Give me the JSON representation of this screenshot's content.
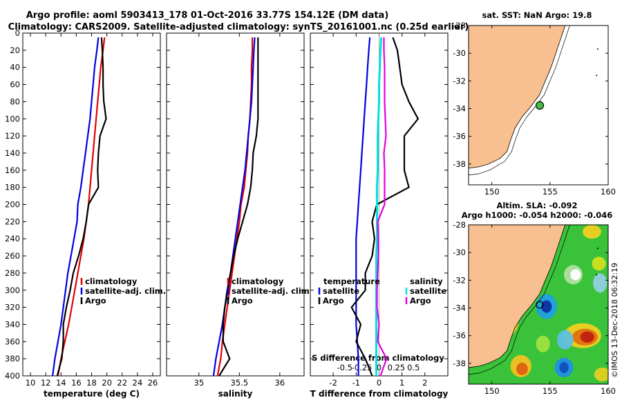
{
  "title_line1": "Argo profile: aoml 5903413_178 01-Oct-2016 33.77S 154.12E (DM data)",
  "title_line2": "Climatology: CARS2009. Satellite-adjusted climatology: synTS_20161001.nc (0.25d earlier)",
  "copyright": "©IMOS 13-Dec-2018 06:32:19",
  "colors": {
    "climatology": "#e00000",
    "satellite": "#0000e0",
    "argo": "#000000",
    "sat_salinity": "#00e0e0",
    "argo_salinity_diff": "#e000e0",
    "land": "#f8c090"
  },
  "chart_data": [
    {
      "type": "line",
      "id": "temperature",
      "xlabel": "temperature (deg C)",
      "xlim": [
        9,
        27
      ],
      "xticks": [
        "10",
        "12",
        "14",
        "16",
        "18",
        "20",
        "22",
        "24",
        "26"
      ],
      "ylim": [
        0,
        400
      ],
      "yticks": [
        "0",
        "20",
        "40",
        "60",
        "80",
        "100",
        "120",
        "140",
        "160",
        "180",
        "200",
        "220",
        "240",
        "260",
        "280",
        "300",
        "320",
        "340",
        "360",
        "380",
        "400"
      ],
      "depth": [
        5,
        20,
        40,
        60,
        80,
        100,
        120,
        140,
        160,
        180,
        200,
        220,
        240,
        260,
        280,
        300,
        320,
        340,
        360,
        380,
        400
      ],
      "series": [
        {
          "name": "climatology",
          "values": [
            19.7,
            19.5,
            19.2,
            19.0,
            18.8,
            18.6,
            18.4,
            18.2,
            18.0,
            17.8,
            17.6,
            17.3,
            17.0,
            16.6,
            16.2,
            15.8,
            15.4,
            15.0,
            14.5,
            14.0,
            13.6
          ]
        },
        {
          "name": "satellite-adj. clim.",
          "values": [
            18.9,
            18.7,
            18.4,
            18.2,
            18.0,
            17.8,
            17.5,
            17.2,
            16.9,
            16.6,
            16.2,
            16.1,
            15.7,
            15.3,
            14.9,
            14.6,
            14.3,
            14.0,
            13.6,
            13.2,
            12.9
          ]
        },
        {
          "name": "Argo",
          "values": [
            19.3,
            19.4,
            19.5,
            19.5,
            19.6,
            19.9,
            19.1,
            18.9,
            18.8,
            18.9,
            17.6,
            17.3,
            16.9,
            16.3,
            15.6,
            15.2,
            14.7,
            14.3,
            14.3,
            14.1,
            13.5
          ]
        }
      ],
      "legend": [
        "climatology",
        "satellite-adj. clim.",
        "Argo"
      ]
    },
    {
      "type": "line",
      "id": "salinity",
      "xlabel": "salinity",
      "xlim": [
        34.6,
        36.3
      ],
      "xticks": [
        "35",
        "35.5",
        "36"
      ],
      "ylim": [
        0,
        400
      ],
      "depth": [
        5,
        20,
        40,
        60,
        80,
        100,
        120,
        140,
        160,
        180,
        200,
        220,
        240,
        260,
        280,
        300,
        320,
        340,
        360,
        380,
        400
      ],
      "series": [
        {
          "name": "climatology",
          "values": [
            35.66,
            35.66,
            35.65,
            35.65,
            35.64,
            35.63,
            35.61,
            35.6,
            35.58,
            35.56,
            35.52,
            35.5,
            35.47,
            35.44,
            35.41,
            35.38,
            35.35,
            35.32,
            35.29,
            35.27,
            35.23
          ]
        },
        {
          "name": "satellite-adj. clim.",
          "values": [
            35.69,
            35.68,
            35.67,
            35.66,
            35.65,
            35.63,
            35.61,
            35.59,
            35.57,
            35.54,
            35.51,
            35.48,
            35.45,
            35.42,
            35.39,
            35.36,
            35.32,
            35.29,
            35.25,
            35.21,
            35.18
          ]
        },
        {
          "name": "Argo",
          "values": [
            35.73,
            35.73,
            35.73,
            35.73,
            35.73,
            35.73,
            35.71,
            35.67,
            35.66,
            35.64,
            35.6,
            35.54,
            35.48,
            35.43,
            35.39,
            35.35,
            35.32,
            35.3,
            35.3,
            35.38,
            35.25
          ]
        }
      ],
      "legend": [
        "climatology",
        "satellite-adj. clim.",
        "Argo"
      ]
    },
    {
      "type": "line",
      "id": "differences",
      "xlabel": "T difference from climatology",
      "xlim": [
        -3,
        3
      ],
      "xticks": [
        "-2",
        "-1",
        "0",
        "1",
        "2"
      ],
      "top_xlabel": "S difference from climatology",
      "top_xticks": [
        "-0.5",
        "-0.25",
        "0",
        "0.25",
        "0.5"
      ],
      "ylim": [
        0,
        400
      ],
      "depth": [
        5,
        20,
        40,
        60,
        80,
        100,
        120,
        140,
        160,
        180,
        200,
        220,
        240,
        260,
        280,
        300,
        320,
        340,
        360,
        380,
        400
      ],
      "series": [
        {
          "name": "temperature satellite",
          "values": [
            -0.4,
            -0.45,
            -0.5,
            -0.55,
            -0.6,
            -0.65,
            -0.7,
            -0.75,
            -0.8,
            -0.85,
            -0.9,
            -0.95,
            -1.0,
            -1.0,
            -1.0,
            -1.0,
            -1.0,
            -1.0,
            -0.95,
            -0.9,
            -0.9
          ]
        },
        {
          "name": "temperature Argo",
          "values": [
            0.6,
            0.8,
            0.9,
            1.0,
            1.3,
            1.7,
            1.1,
            1.1,
            1.1,
            1.3,
            -0.1,
            -0.3,
            -0.2,
            -0.3,
            -0.6,
            -0.6,
            -1.2,
            -0.8,
            -1.0,
            -0.6,
            -0.3
          ]
        },
        {
          "name": "salinity satellite",
          "values": [
            0.03,
            0.02,
            0.01,
            0.0,
            0.0,
            -0.01,
            -0.02,
            -0.02,
            -0.02,
            -0.03,
            -0.03,
            -0.03,
            -0.03,
            -0.04,
            -0.04,
            -0.04,
            -0.04,
            -0.04,
            -0.04,
            -0.04,
            -0.04
          ]
        },
        {
          "name": "salinity Argo",
          "values": [
            0.07,
            0.07,
            0.08,
            0.08,
            0.08,
            0.09,
            0.1,
            0.07,
            0.08,
            0.08,
            0.08,
            -0.02,
            -0.01,
            -0.01,
            -0.02,
            -0.03,
            -0.03,
            0.0,
            -0.02,
            0.11,
            0.02
          ]
        }
      ],
      "legend_temperature": {
        "heading": "temperature",
        "items": [
          "satellite",
          "Argo"
        ]
      },
      "legend_salinity": {
        "heading": "salinity",
        "items": [
          "satellite",
          "Argo"
        ]
      }
    },
    {
      "type": "map",
      "id": "sst_map",
      "title": "sat. SST: NaN Argo: 19.8",
      "xlim": [
        148,
        160
      ],
      "ylim": [
        -39.5,
        -28
      ],
      "xticks": [
        "150",
        "155",
        "160"
      ],
      "yticks": [
        "-28",
        "-30",
        "-32",
        "-34",
        "-36",
        "-38"
      ],
      "float_lon": 154.12,
      "float_lat": -33.77
    },
    {
      "type": "map",
      "id": "sla_map",
      "title": "Altim. SLA: -0.092",
      "subtitle": "Argo h1000: -0.054 h2000: -0.046",
      "xlim": [
        148,
        160
      ],
      "ylim": [
        -39.5,
        -28
      ],
      "xticks": [
        "150",
        "155",
        "160"
      ],
      "yticks": [
        "-28",
        "-30",
        "-32",
        "-34",
        "-36",
        "-38"
      ],
      "float_lon": 154.12,
      "float_lat": -33.77
    }
  ]
}
